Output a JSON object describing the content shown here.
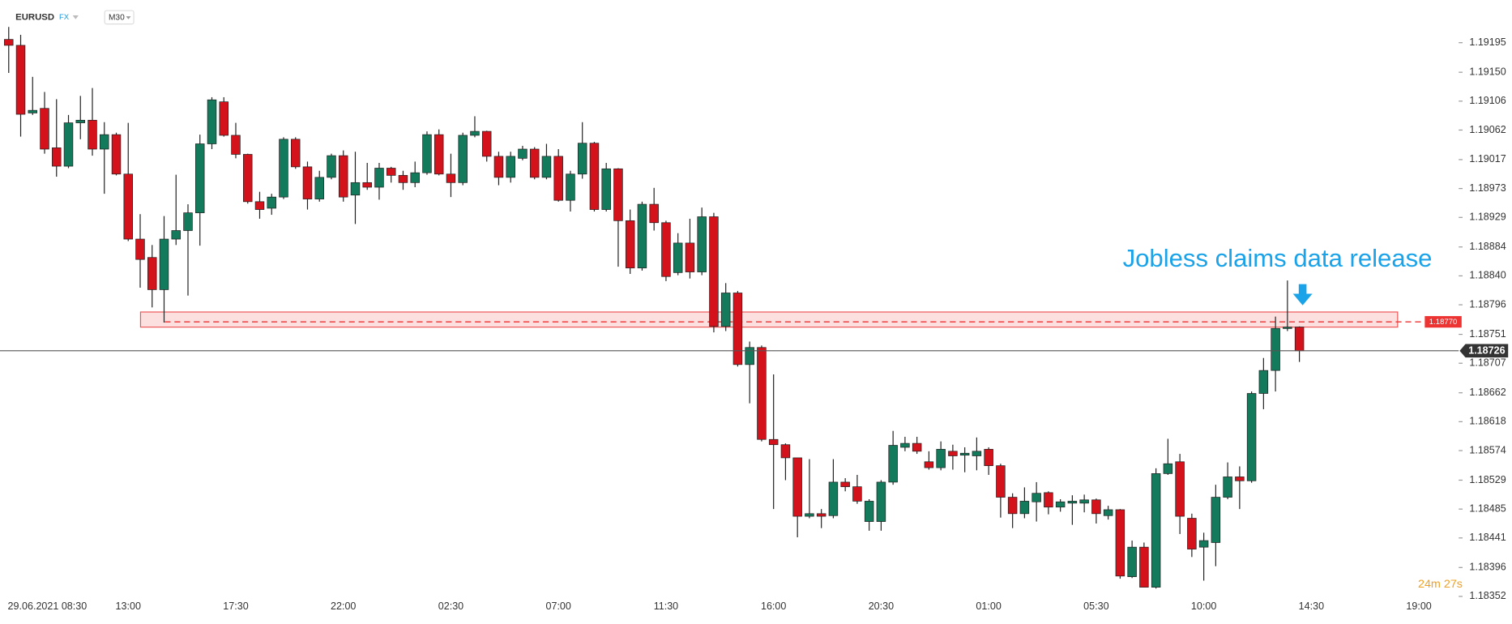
{
  "chart_data": {
    "type": "candlestick",
    "symbol": "EURUSD",
    "market": "FX",
    "timeframe": "M30",
    "annotation": "Jobless claims data release",
    "countdown": "24m 27s",
    "up_color": "#147a5c",
    "down_color": "#d3121c",
    "grid": false,
    "ylim": [
      1.1831,
      1.1926
    ],
    "yticks": [
      1.19195,
      {
        "value": 1.1915,
        "label": "1.19150"
      },
      1.19106,
      1.19062,
      1.19017,
      1.18973,
      1.18929,
      1.18884,
      {
        "value": 1.1884,
        "label": "1.18840"
      },
      1.18796,
      1.18751,
      1.18707,
      1.18662,
      1.18618,
      1.18574,
      1.18529,
      1.18485,
      1.18441,
      1.18396,
      1.18352
    ],
    "current_price": 1.18726,
    "level": {
      "value": 1.1877,
      "label": "1.18770"
    },
    "zone": [
      1.18762,
      1.18785
    ],
    "categories": [
      "29.06.2021 08:30",
      null,
      null,
      null,
      null,
      null,
      null,
      null,
      null,
      null,
      "13:00",
      null,
      null,
      null,
      null,
      null,
      null,
      null,
      null,
      "17:30",
      null,
      null,
      null,
      null,
      null,
      null,
      null,
      null,
      "22:00",
      null,
      null,
      null,
      null,
      null,
      null,
      null,
      null,
      "02:30",
      null,
      null,
      null,
      null,
      null,
      null,
      null,
      null,
      "07:00",
      null,
      null,
      null,
      null,
      null,
      null,
      null,
      null,
      "11:30",
      null,
      null,
      null,
      null,
      null,
      null,
      null,
      null,
      "16:00",
      null,
      null,
      null,
      null,
      null,
      null,
      null,
      null,
      "20:30",
      null,
      null,
      null,
      null,
      null,
      null,
      null,
      null,
      "01:00",
      null,
      null,
      null,
      null,
      null,
      null,
      null,
      null,
      "05:30",
      null,
      null,
      null,
      null,
      null,
      null,
      null,
      null,
      "10:00",
      null,
      null,
      null,
      null,
      null,
      null,
      null,
      null,
      "14:30",
      null,
      null,
      null,
      null,
      null,
      null,
      null,
      null,
      "19:00"
    ],
    "open": [
      1.192,
      1.19191,
      1.19088,
      1.19095,
      1.19035,
      1.19007,
      1.19073,
      1.19077,
      1.19033,
      1.19055,
      1.18995,
      1.18896,
      1.18868,
      1.18819,
      1.18896,
      1.18909,
      1.18936,
      1.19041,
      1.19105,
      1.19054,
      1.19025,
      1.18953,
      1.18943,
      1.1896,
      1.19048,
      1.19006,
      1.18957,
      1.1899,
      1.19023,
      1.18963,
      1.18982,
      1.18975,
      1.19004,
      1.18993,
      1.18982,
      1.18997,
      1.19055,
      1.18995,
      1.18982,
      1.19054,
      1.1906,
      1.19022,
      1.1899,
      1.19019,
      1.19033,
      1.1899,
      1.19022,
      1.18955,
      1.18995,
      1.19042,
      1.18941,
      1.19003,
      1.18924,
      1.18852,
      1.18949,
      1.18921,
      1.18845,
      1.1889,
      1.18846,
      1.1893,
      1.18763,
      1.18814,
      1.18705,
      1.18731,
      1.18591,
      1.18583,
      1.18563,
      1.18474,
      1.18478,
      1.18475,
      1.18526,
      1.18519,
      1.18466,
      1.18466,
      1.18526,
      1.18579,
      1.18585,
      1.18557,
      1.18548,
      1.18573,
      1.18567,
      1.18566,
      1.18576,
      1.18551,
      1.18503,
      1.18478,
      1.18496,
      1.1851,
      1.18488,
      1.18494,
      1.18494,
      1.18499,
      1.18475,
      1.18484,
      1.18382,
      1.18427,
      1.18366,
      1.18539,
      1.18557,
      1.18471,
      1.18427,
      1.18434,
      1.18503,
      1.18534,
      1.18528,
      1.18661,
      1.18696,
      1.1876,
      1.18762,
      null,
      null,
      null,
      null,
      null,
      null,
      null,
      null,
      null,
      null
    ],
    "high": [
      1.19219,
      1.19207,
      1.19143,
      1.1912,
      1.19109,
      1.19085,
      1.19114,
      1.19126,
      1.19074,
      1.19058,
      1.19073,
      1.18934,
      1.18887,
      1.18931,
      1.18994,
      1.18949,
      1.19055,
      1.19112,
      1.19112,
      1.19073,
      1.19026,
      1.18968,
      1.18965,
      1.19051,
      1.19051,
      1.19014,
      1.19,
      1.19026,
      1.19031,
      1.19029,
      1.19012,
      1.19012,
      1.19006,
      1.19,
      1.19014,
      1.1906,
      1.19063,
      1.19026,
      1.19058,
      1.19083,
      1.19061,
      1.19029,
      1.19029,
      1.19038,
      1.19036,
      1.19041,
      1.19033,
      1.19,
      1.19074,
      1.19044,
      1.19012,
      1.19004,
      1.18941,
      1.18953,
      1.18974,
      1.18924,
      1.18905,
      1.18927,
      1.18944,
      1.18936,
      1.18829,
      1.18817,
      1.1874,
      1.18734,
      1.1869,
      1.18585,
      1.18563,
      1.18561,
      1.18485,
      1.18561,
      1.18532,
      1.18537,
      1.185,
      1.18529,
      1.18604,
      1.18595,
      1.18595,
      1.18573,
      1.18588,
      1.18583,
      1.18579,
      1.18594,
      1.18579,
      1.18554,
      1.18509,
      1.18518,
      1.18526,
      1.18512,
      1.185,
      1.18506,
      1.18507,
      1.18501,
      1.1849,
      1.18485,
      1.18437,
      1.18434,
      1.18547,
      1.18592,
      1.18569,
      1.18478,
      1.18449,
      1.18522,
      1.18556,
      1.1855,
      1.18664,
      1.18715,
      1.18778,
      1.18833,
      1.18763,
      null,
      null,
      null,
      null,
      null,
      null,
      null,
      null,
      null,
      null
    ],
    "low": [
      1.19149,
      1.19052,
      1.19085,
      1.19026,
      1.18991,
      1.19004,
      1.19048,
      1.19023,
      1.18965,
      1.18993,
      1.18893,
      1.18822,
      1.18792,
      1.18769,
      1.18887,
      1.1881,
      1.18886,
      1.19033,
      1.19052,
      1.19019,
      1.1895,
      1.18927,
      1.18933,
      1.18957,
      1.19003,
      1.18941,
      1.18953,
      1.18987,
      1.18953,
      1.18919,
      1.18971,
      1.18956,
      1.18982,
      1.18971,
      1.18975,
      1.18994,
      1.18993,
      1.1896,
      1.18978,
      1.19051,
      1.19014,
      1.18978,
      1.18982,
      1.19016,
      1.18987,
      1.18987,
      1.18953,
      1.18938,
      1.18988,
      1.18938,
      1.18938,
      1.18854,
      1.18843,
      1.18848,
      1.18909,
      1.18832,
      1.18841,
      1.18836,
      1.18841,
      1.18754,
      1.18756,
      1.18702,
      1.18646,
      1.18588,
      1.18485,
      1.18529,
      1.18442,
      1.18471,
      1.18456,
      1.18471,
      1.18512,
      1.18493,
      1.18452,
      1.18452,
      1.18522,
      1.18573,
      1.18569,
      1.18545,
      1.18544,
      1.18545,
      1.18541,
      1.18544,
      1.18537,
      1.18472,
      1.18456,
      1.18471,
      1.18466,
      1.18477,
      1.18481,
      1.18461,
      1.1848,
      1.18463,
      1.18469,
      1.18379,
      1.1838,
      1.18366,
      1.18364,
      1.18537,
      1.18447,
      1.18412,
      1.18376,
      1.18398,
      1.185,
      1.18485,
      1.18525,
      1.18637,
      1.18664,
      1.18756,
      1.18709,
      null,
      null,
      null,
      null,
      null,
      null,
      null,
      null,
      null,
      null
    ],
    "close": [
      1.19191,
      1.19086,
      1.19092,
      1.19033,
      1.19007,
      1.19073,
      1.19077,
      1.19033,
      1.19055,
      1.18995,
      1.18896,
      1.18865,
      1.18819,
      1.18896,
      1.18909,
      1.18936,
      1.19041,
      1.19108,
      1.19054,
      1.19025,
      1.18953,
      1.18941,
      1.1896,
      1.19048,
      1.19006,
      1.18957,
      1.1899,
      1.19023,
      1.1896,
      1.18982,
      1.18975,
      1.19004,
      1.18993,
      1.18982,
      1.18997,
      1.19055,
      1.18995,
      1.18982,
      1.19054,
      1.1906,
      1.19022,
      1.1899,
      1.19022,
      1.19033,
      1.1899,
      1.19022,
      1.18955,
      1.18995,
      1.19042,
      1.18941,
      1.19003,
      1.18924,
      1.18852,
      1.18949,
      1.18921,
      1.18839,
      1.1889,
      1.18846,
      1.1893,
      1.18763,
      1.18814,
      1.18705,
      1.18731,
      1.18591,
      1.18583,
      1.18563,
      1.18474,
      1.18478,
      1.18474,
      1.18526,
      1.18519,
      1.18497,
      1.18497,
      1.18526,
      1.18582,
      1.18585,
      1.18573,
      1.18548,
      1.18576,
      1.18566,
      1.1857,
      1.18573,
      1.18551,
      1.18503,
      1.18478,
      1.18497,
      1.18509,
      1.18488,
      1.18496,
      1.18497,
      1.18499,
      1.18478,
      1.18484,
      1.18383,
      1.18427,
      1.18366,
      1.18539,
      1.18554,
      1.18474,
      1.18424,
      1.18437,
      1.18503,
      1.18534,
      1.18528,
      1.18661,
      1.18696,
      1.1876,
      1.18762,
      1.18726,
      null,
      null,
      null,
      null,
      null,
      null,
      null,
      null,
      null,
      null
    ]
  }
}
